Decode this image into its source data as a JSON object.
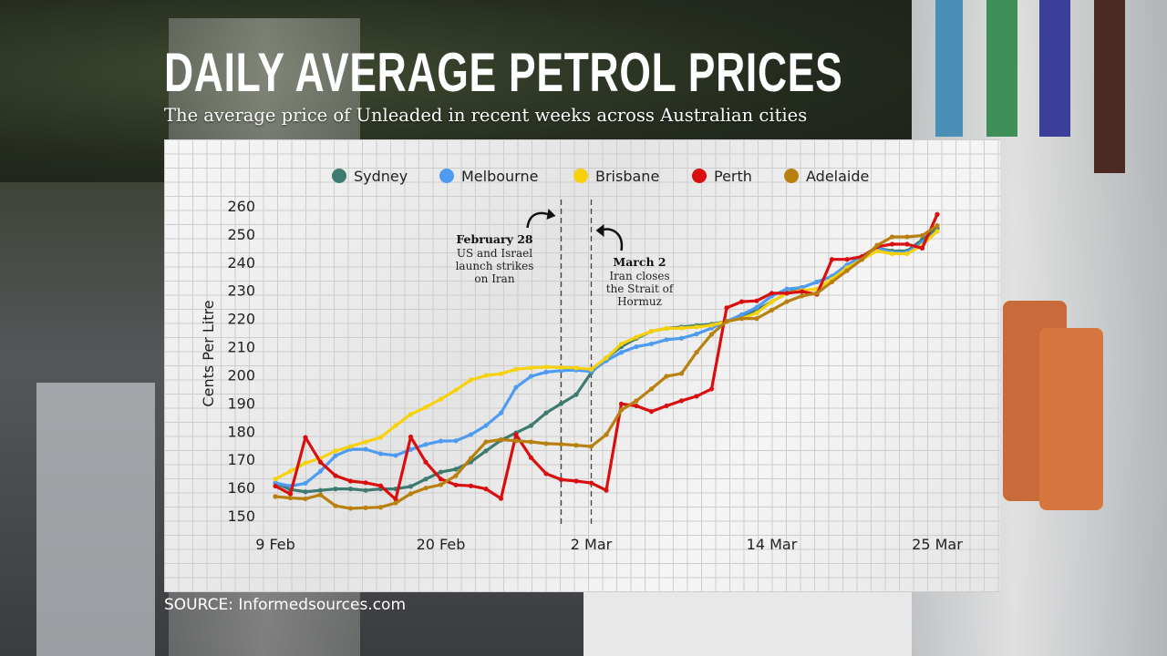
{
  "header": {
    "title": "DAILY AVERAGE PETROL PRICES",
    "subtitle": "The average price of Unleaded in recent weeks across Australian cities"
  },
  "footer": {
    "source": "SOURCE: Informedsources.com"
  },
  "chart_data": {
    "type": "line",
    "title": "DAILY AVERAGE PETROL PRICES",
    "subtitle": "The average price of Unleaded in recent weeks across Australian cities",
    "xlabel": "",
    "ylabel": "Cents Per Litre",
    "ylim": [
      150,
      260
    ],
    "yticks": [
      150,
      160,
      170,
      180,
      190,
      200,
      210,
      220,
      230,
      240,
      250,
      260
    ],
    "x_start": "9 Feb",
    "x_end": "25 Mar",
    "xticks": [
      {
        "label": "9 Feb",
        "day": 0
      },
      {
        "label": "20 Feb",
        "day": 11
      },
      {
        "label": "2 Mar",
        "day": 21
      },
      {
        "label": "14 Mar",
        "day": 33
      },
      {
        "label": "25 Mar",
        "day": 44
      }
    ],
    "grid": true,
    "legend_position": "top",
    "series": [
      {
        "name": "Sydney",
        "color": "#3d7b70",
        "values": [
          161.6,
          159.3,
          158.5,
          159,
          159.5,
          159.5,
          159,
          159.5,
          159.5,
          160.4,
          163,
          165.5,
          166.5,
          169.1,
          173,
          176.8,
          179.4,
          182,
          186.5,
          189.8,
          193,
          200.8,
          206,
          210,
          213,
          215.5,
          216.5,
          217,
          217.5,
          218,
          219,
          221,
          223,
          226,
          229,
          231,
          233,
          235,
          239,
          242,
          245,
          244,
          244,
          248,
          252
        ]
      },
      {
        "name": "Melbourne",
        "color": "#4d9cf2",
        "values": [
          161.6,
          160.5,
          161.5,
          165.8,
          171.3,
          173.6,
          173.6,
          172,
          171.4,
          173.5,
          175.3,
          176.5,
          176.6,
          178.8,
          182,
          186.5,
          195.6,
          199.5,
          201,
          201.5,
          201.7,
          201.2,
          205,
          208,
          210,
          211,
          212.5,
          213,
          214.5,
          216.6,
          219,
          221.4,
          224,
          228,
          230.5,
          231,
          233,
          235,
          239,
          242,
          245,
          243.5,
          243.5,
          247,
          251
        ]
      },
      {
        "name": "Brisbane",
        "color": "#f7d20c",
        "values": [
          163,
          165.8,
          168.7,
          170.4,
          173,
          174.6,
          176.2,
          177.8,
          182,
          186,
          188.5,
          191.4,
          194.6,
          198.2,
          199.8,
          200.4,
          202,
          202.5,
          202.8,
          202.6,
          202.5,
          202,
          206,
          211,
          213.4,
          215.5,
          216.5,
          216.6,
          217,
          217.6,
          219,
          220,
          222,
          226,
          229,
          230,
          230.5,
          234,
          238,
          241,
          244,
          243,
          243,
          246,
          251
        ]
      },
      {
        "name": "Perth",
        "color": "#d90f0f",
        "values": [
          160.5,
          157.7,
          177.8,
          169,
          164.2,
          162.3,
          161.7,
          160.6,
          155.8,
          178,
          169,
          163,
          160.9,
          160.6,
          159.5,
          156.1,
          178.8,
          170.6,
          164.9,
          162.8,
          162.3,
          161.6,
          159,
          189.7,
          189,
          187,
          189,
          190.8,
          192.4,
          195,
          223.8,
          226,
          226.3,
          229,
          229,
          229.6,
          228.6,
          241,
          241,
          242,
          245.5,
          246.4,
          246.4,
          245,
          257
        ]
      },
      {
        "name": "Adelaide",
        "color": "#b8800f",
        "values": [
          156.8,
          156.3,
          156,
          157.4,
          153.5,
          152.6,
          152.8,
          153,
          154.5,
          157.8,
          159.8,
          161,
          164.2,
          170.4,
          176.2,
          177,
          176.6,
          176.2,
          175.6,
          175.4,
          175,
          174.6,
          178.8,
          187.5,
          190.8,
          195,
          199.5,
          200.5,
          208,
          214.4,
          219,
          220,
          220,
          223,
          226,
          228,
          229,
          233,
          237,
          241,
          246,
          249,
          249,
          249.5,
          253
        ]
      }
    ],
    "annotations": [
      {
        "day": 19,
        "date_label": "February 28",
        "lines": [
          "US and Israel",
          "launch strikes",
          "on Iran"
        ]
      },
      {
        "day": 21,
        "date_label": "March 2",
        "lines": [
          "Iran closes",
          "the Strait of",
          "Hormuz"
        ]
      }
    ]
  }
}
